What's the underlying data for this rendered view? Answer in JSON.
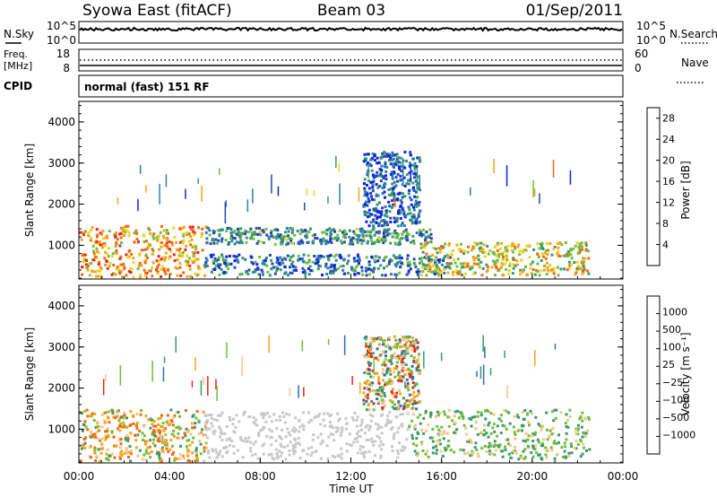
{
  "header": {
    "station": "Syowa East (fitACF)",
    "beam": "Beam 03",
    "date": "01/Sep/2011"
  },
  "strip_panels": {
    "nsky": {
      "label": "N.Sky",
      "ticks": [
        "10^5",
        "10^0"
      ],
      "right_label": "N.Search",
      "right_ticks": [
        "10^5",
        "10^0"
      ]
    },
    "freq": {
      "label_top": "Freq.",
      "label_unit": "[MHz]",
      "ticks": [
        "18",
        "8"
      ],
      "right_label": "Nave",
      "right_ticks": [
        "60",
        "0"
      ]
    },
    "cpid": {
      "label": "CPID",
      "text": "normal (fast) 151 RF"
    }
  },
  "colors": {
    "power_scale": [
      "#0a24e6",
      "#2348b4",
      "#2e7dac",
      "#3a9a6a",
      "#6fbf3a",
      "#f2d21e",
      "#f7a21b",
      "#f06a12",
      "#e8261b"
    ],
    "velocity_scale": [
      "#e8261b",
      "#f06a12",
      "#f7a21b",
      "#f6c48a",
      "#c8c8c8",
      "#6fbf3a",
      "#3a9a6a",
      "#2e6db4",
      "#2340c8"
    ],
    "ground_scatter": "#c8c8c8"
  },
  "chart_data": [
    {
      "type": "heatmap",
      "title": "Power",
      "xlabel": "",
      "ylabel": "Slant Range [km]",
      "xlim": [
        "00:00",
        "24:00"
      ],
      "ylim": [
        180,
        4500
      ],
      "y_ticks": [
        1000,
        2000,
        3000,
        4000
      ],
      "colorbar": {
        "label": "Power [dB]",
        "ticks": [
          4,
          8,
          12,
          16,
          20,
          24,
          28
        ],
        "range": [
          0,
          30
        ]
      },
      "scatter_regions": [
        {
          "t_start": 0.0,
          "t_end": 5.6,
          "range_low": 250,
          "range_high": 1500,
          "value": 22
        },
        {
          "t_start": 5.5,
          "t_end": 15.5,
          "range_low": 1050,
          "range_high": 1450,
          "value": 10
        },
        {
          "t_start": 12.5,
          "t_end": 15.0,
          "range_low": 1500,
          "range_high": 3300,
          "value": 6
        },
        {
          "t_start": 5.5,
          "t_end": 16.5,
          "range_low": 300,
          "range_high": 800,
          "value": 8
        },
        {
          "t_start": 15.0,
          "t_end": 22.5,
          "range_low": 300,
          "range_high": 1100,
          "value": 18
        }
      ]
    },
    {
      "type": "heatmap",
      "title": "Velocity",
      "xlabel": "Time UT",
      "ylabel": "Slant Range [km]",
      "xlim": [
        "00:00",
        "24:00"
      ],
      "ylim": [
        180,
        4500
      ],
      "x_ticks": [
        "00:00",
        "04:00",
        "08:00",
        "12:00",
        "16:00",
        "20:00",
        "00:00"
      ],
      "y_ticks": [
        1000,
        2000,
        3000,
        4000
      ],
      "colorbar": {
        "label": "Velocity [m s⁻¹]",
        "ticks": [
          "1000",
          "500",
          "100",
          "25",
          "−25",
          "−100",
          "−500",
          "−1000"
        ]
      },
      "scatter_regions": [
        {
          "t_start": 0.0,
          "t_end": 5.6,
          "range_low": 250,
          "range_high": 1500,
          "kind": "negative",
          "value": -200
        },
        {
          "t_start": 5.5,
          "t_end": 14.5,
          "range_low": 300,
          "range_high": 1450,
          "kind": "ground",
          "value": 0
        },
        {
          "t_start": 12.5,
          "t_end": 15.0,
          "range_low": 1500,
          "range_high": 3300,
          "kind": "mixed",
          "value": 150
        },
        {
          "t_start": 14.5,
          "t_end": 22.5,
          "range_low": 300,
          "range_high": 1500,
          "kind": "positive",
          "value": 120
        }
      ]
    }
  ]
}
